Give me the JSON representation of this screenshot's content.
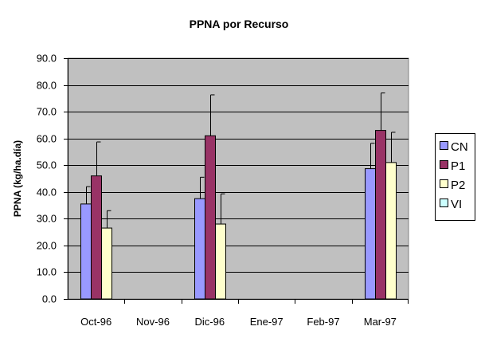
{
  "chart_data": {
    "type": "bar",
    "title": "PPNA por Recurso",
    "xlabel": "",
    "ylabel": "PPNA (kg/ha.día)",
    "ylim": [
      0,
      90
    ],
    "yticks": [
      "0.0",
      "10.0",
      "20.0",
      "30.0",
      "40.0",
      "50.0",
      "60.0",
      "70.0",
      "80.0",
      "90.0"
    ],
    "categories": [
      "Oct-96",
      "Nov-96",
      "Dic-96",
      "Ene-97",
      "Feb-97",
      "Mar-97"
    ],
    "series": [
      {
        "name": "CN",
        "color": "#9999FF",
        "values": [
          35.5,
          null,
          37.5,
          null,
          null,
          48.7
        ],
        "errors": [
          6.5,
          null,
          8.0,
          null,
          null,
          9.5
        ]
      },
      {
        "name": "P1",
        "color": "#993366",
        "values": [
          46.0,
          null,
          61.0,
          null,
          null,
          63.0
        ],
        "errors": [
          12.7,
          null,
          15.3,
          null,
          null,
          14.0
        ]
      },
      {
        "name": "P2",
        "color": "#FFFFCC",
        "values": [
          26.5,
          null,
          28.0,
          null,
          null,
          51.0
        ],
        "errors": [
          6.5,
          null,
          11.3,
          null,
          null,
          11.3
        ]
      },
      {
        "name": "VI",
        "color": "#CCFFFF",
        "values": [
          null,
          null,
          null,
          null,
          null,
          null
        ],
        "errors": [
          null,
          null,
          null,
          null,
          null,
          null
        ]
      }
    ],
    "grid": true,
    "plot_background": "#C0C0C0",
    "legend_position": "right"
  }
}
